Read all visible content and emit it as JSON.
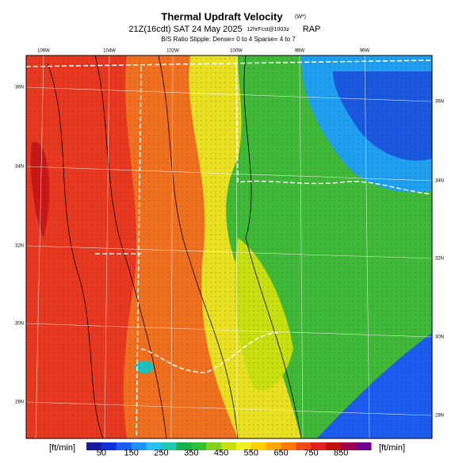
{
  "header": {
    "title": "Thermal Updraft Velocity",
    "title_unit": "(W*)",
    "line2_main": "21Z(16cdt) SAT 24 May 2025",
    "line2_small": "12hrFcst@1003z",
    "line2_model": "RAP",
    "line3": "B/S Ratio Stipple: Dense= 0 to 4 Sparse= 4 to 7"
  },
  "map": {
    "lon_labels": [
      "106W",
      "104W",
      "102W",
      "100W",
      "98W",
      "96W"
    ],
    "lat_labels_left": [
      "36N",
      "34N",
      "32N",
      "30N",
      "28N"
    ],
    "lat_labels_right": [
      "36N",
      "34N",
      "32N",
      "30N",
      "28N"
    ]
  },
  "colorbar": {
    "unit_left": "[ft/min]",
    "unit_right": "[ft/min]",
    "lim": [
      0,
      950
    ],
    "ticks": [
      50,
      150,
      250,
      350,
      450,
      550,
      650,
      750,
      850
    ],
    "colors": [
      "#1a1aa0",
      "#1030d8",
      "#1c5cf0",
      "#2090ff",
      "#28c0f0",
      "#20c8b0",
      "#18b048",
      "#30c030",
      "#80d020",
      "#c8e010",
      "#f0f020",
      "#ffd000",
      "#ffa800",
      "#ff7800",
      "#f04818",
      "#e02020",
      "#c01010",
      "#a00050",
      "#700090"
    ]
  }
}
